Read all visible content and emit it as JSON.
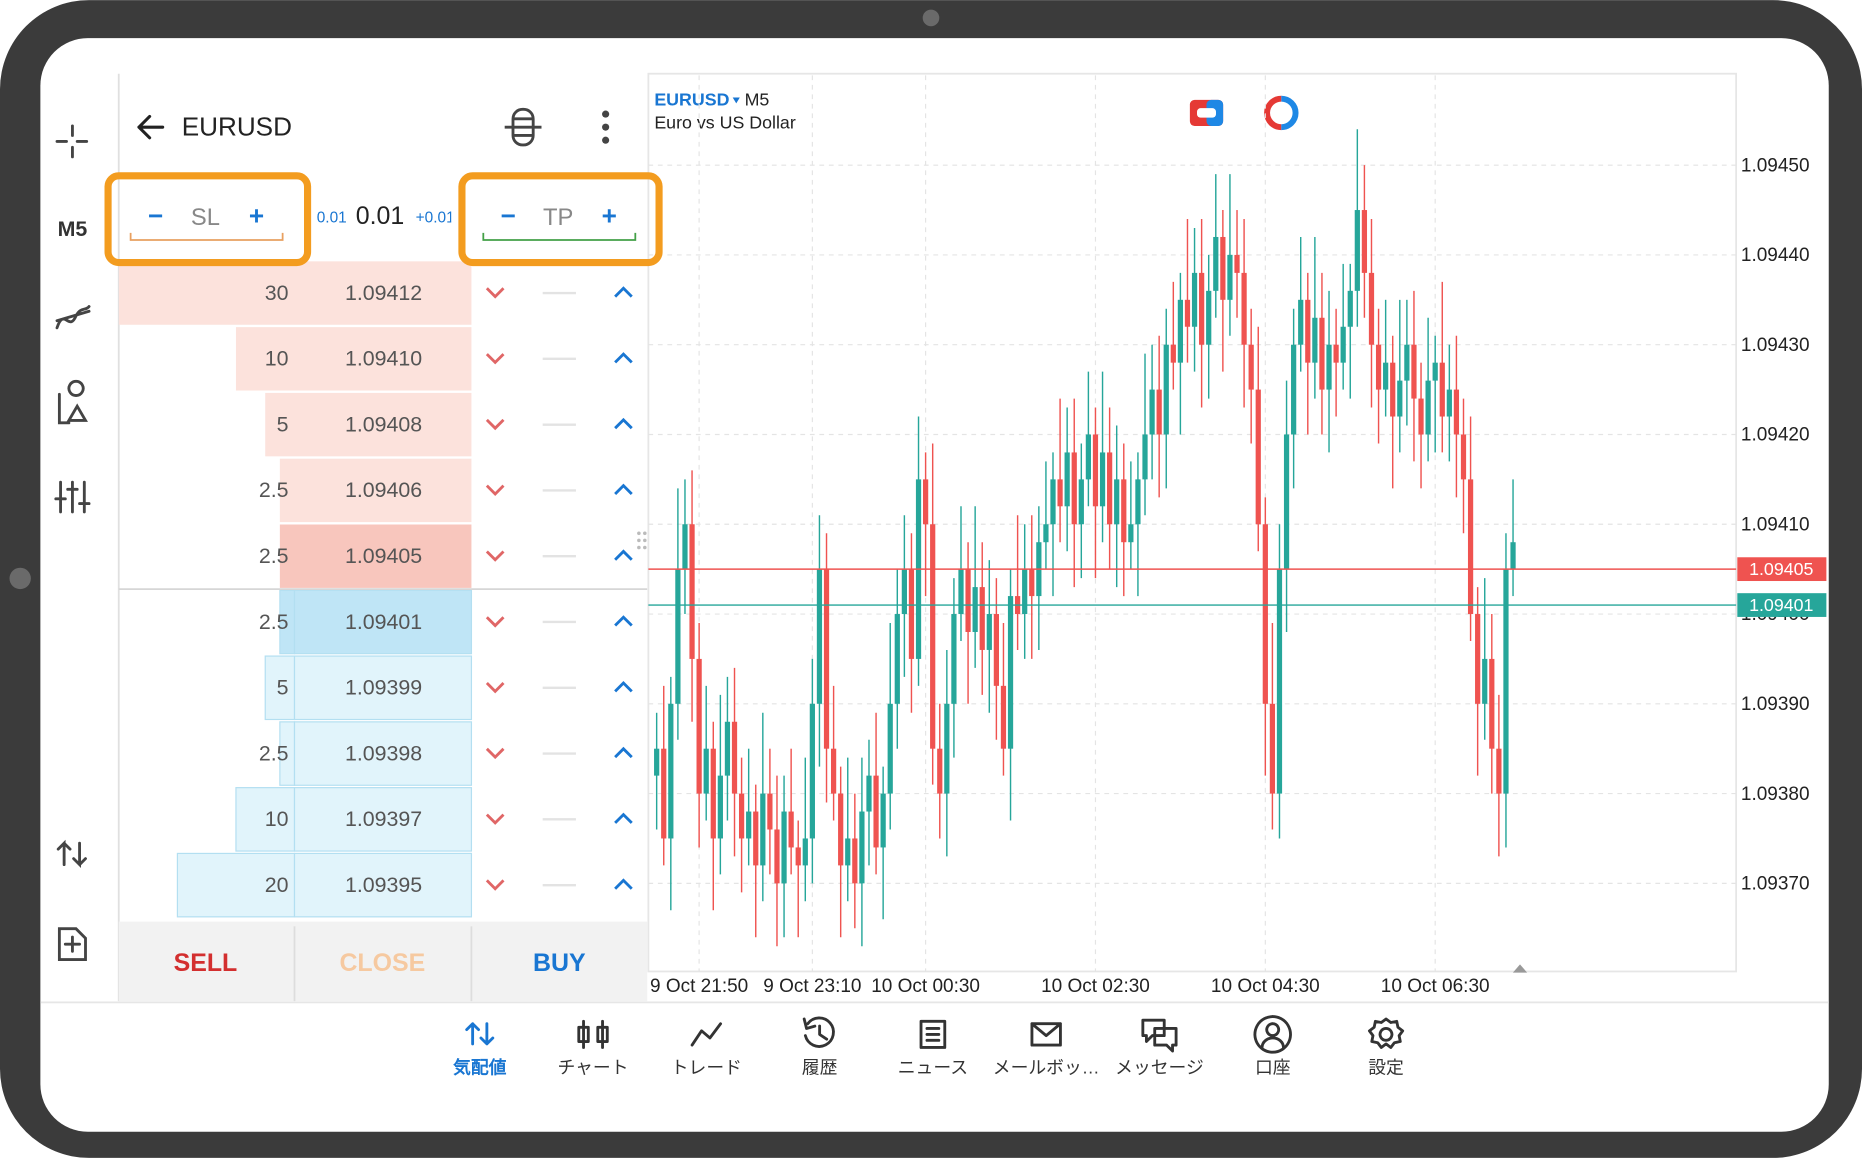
{
  "toolbar": {
    "timeframe": "M5"
  },
  "order_panel": {
    "symbol": "EURUSD",
    "sl": "SL",
    "tp": "TP",
    "volume_minus": "0.01",
    "volume": "0.01",
    "volume_plus": "+0.01",
    "ask_rows": [
      {
        "volume": 30,
        "price": "1.09412"
      },
      {
        "volume": 10,
        "price": "1.09410"
      },
      {
        "volume": 5,
        "price": "1.09408"
      },
      {
        "volume": 2.5,
        "price": "1.09406"
      },
      {
        "volume": 2.5,
        "price": "1.09405"
      }
    ],
    "bid_rows": [
      {
        "volume": 2.5,
        "price": "1.09401"
      },
      {
        "volume": 5,
        "price": "1.09399"
      },
      {
        "volume": 2.5,
        "price": "1.09398"
      },
      {
        "volume": 10,
        "price": "1.09397"
      },
      {
        "volume": 20,
        "price": "1.09395"
      }
    ],
    "buttons": {
      "sell": "SELL",
      "close": "CLOSE",
      "buy": "BUY"
    }
  },
  "chart_data": {
    "type": "candlestick",
    "symbol": "EURUSD",
    "timeframe": "M5",
    "description": "Euro vs US Dollar",
    "categories": [
      null,
      null,
      null,
      null,
      null,
      null,
      "9 Oct 21:50",
      null,
      null,
      null,
      null,
      null,
      null,
      null,
      null,
      null,
      null,
      null,
      null,
      null,
      null,
      null,
      "9 Oct 23:10",
      null,
      null,
      null,
      null,
      null,
      null,
      null,
      null,
      null,
      null,
      null,
      null,
      null,
      null,
      null,
      "10 Oct 00:30",
      null,
      null,
      null,
      null,
      null,
      null,
      null,
      null,
      null,
      null,
      null,
      null,
      null,
      null,
      null,
      null,
      null,
      null,
      null,
      null,
      null,
      null,
      null,
      "10 Oct 02:30",
      null,
      null,
      null,
      null,
      null,
      null,
      null,
      null,
      null,
      null,
      null,
      null,
      null,
      null,
      null,
      null,
      null,
      null,
      null,
      null,
      null,
      null,
      null,
      "10 Oct 04:30",
      null,
      null,
      null,
      null,
      null,
      null,
      null,
      null,
      null,
      null,
      null,
      null,
      null,
      null,
      null,
      null,
      null,
      null,
      null,
      null,
      null,
      null,
      null,
      "10 Oct 06:30",
      null,
      null,
      null,
      null,
      null,
      null,
      null,
      null,
      null,
      null,
      null
    ],
    "open": [
      1.09382,
      1.09385,
      1.09375,
      1.0939,
      1.09405,
      1.0941,
      1.09395,
      1.0938,
      1.09385,
      1.09375,
      1.09382,
      1.09388,
      1.0938,
      1.09375,
      1.09378,
      1.09372,
      1.0938,
      1.09376,
      1.0937,
      1.09378,
      1.09374,
      1.09372,
      1.09375,
      1.0939,
      1.09405,
      1.09385,
      1.0938,
      1.09372,
      1.09375,
      1.0937,
      1.09378,
      1.09382,
      1.09374,
      1.0938,
      1.0939,
      1.094,
      1.09405,
      1.09395,
      1.09415,
      1.0941,
      1.09385,
      1.0938,
      1.0939,
      1.094,
      1.09405,
      1.09398,
      1.09403,
      1.09396,
      1.094,
      1.09392,
      1.09385,
      1.09402,
      1.094,
      1.09405,
      1.09402,
      1.09408,
      1.0941,
      1.09415,
      1.09412,
      1.09418,
      1.0941,
      1.09415,
      1.0942,
      1.09412,
      1.09418,
      1.0941,
      1.09415,
      1.09408,
      1.0941,
      1.09415,
      1.0942,
      1.09425,
      1.0942,
      1.0943,
      1.09428,
      1.09435,
      1.09432,
      1.09438,
      1.0943,
      1.09436,
      1.09442,
      1.09435,
      1.0944,
      1.09438,
      1.0943,
      1.09425,
      1.0941,
      1.0939,
      1.0938,
      1.09405,
      1.0942,
      1.0943,
      1.09435,
      1.09428,
      1.09433,
      1.09425,
      1.0943,
      1.09428,
      1.09432,
      1.09436,
      1.09445,
      1.09438,
      1.0943,
      1.09425,
      1.09428,
      1.09422,
      1.09426,
      1.0943,
      1.09424,
      1.0942,
      1.09426,
      1.09428,
      1.09422,
      1.09425,
      1.0942,
      1.09415,
      1.094,
      1.0939,
      1.09395,
      1.09385,
      1.0938,
      1.09405
    ],
    "high": [
      1.09389,
      1.09392,
      1.09393,
      1.09414,
      1.09415,
      1.09416,
      1.09399,
      1.09392,
      1.09388,
      1.09391,
      1.09393,
      1.09394,
      1.09384,
      1.09385,
      1.09381,
      1.09389,
      1.09385,
      1.09382,
      1.09382,
      1.09385,
      1.09377,
      1.09384,
      1.09395,
      1.09411,
      1.09409,
      1.09392,
      1.09383,
      1.09384,
      1.0938,
      1.09384,
      1.09386,
      1.09389,
      1.09383,
      1.09399,
      1.09405,
      1.09411,
      1.09409,
      1.09422,
      1.09418,
      1.09419,
      1.0939,
      1.09396,
      1.09404,
      1.09412,
      1.09408,
      1.09412,
      1.09408,
      1.09406,
      1.09404,
      1.09399,
      1.09405,
      1.09411,
      1.0941,
      1.09411,
      1.09412,
      1.09417,
      1.09418,
      1.09424,
      1.09423,
      1.09424,
      1.09419,
      1.09427,
      1.09423,
      1.09427,
      1.09423,
      1.09421,
      1.09419,
      1.09417,
      1.09418,
      1.09429,
      1.0943,
      1.09431,
      1.09434,
      1.09437,
      1.09438,
      1.09444,
      1.09443,
      1.09444,
      1.0944,
      1.09449,
      1.09445,
      1.09449,
      1.09445,
      1.09444,
      1.09434,
      1.09432,
      1.09413,
      1.09399,
      1.0941,
      1.09426,
      1.09434,
      1.09442,
      1.09438,
      1.09442,
      1.09438,
      1.09436,
      1.09434,
      1.09439,
      1.09439,
      1.09454,
      1.0945,
      1.09444,
      1.09434,
      1.09435,
      1.09431,
      1.09435,
      1.09435,
      1.09436,
      1.09428,
      1.09433,
      1.09431,
      1.09437,
      1.0943,
      1.09431,
      1.09424,
      1.09422,
      1.09403,
      1.09404,
      1.094,
      1.09391,
      1.09409,
      1.09415
    ],
    "low": [
      1.09376,
      1.09372,
      1.09367,
      1.09386,
      1.094,
      1.09388,
      1.09374,
      1.09377,
      1.09367,
      1.09371,
      1.09377,
      1.09373,
      1.09369,
      1.09372,
      1.09364,
      1.09368,
      1.09371,
      1.09363,
      1.09364,
      1.09371,
      1.09364,
      1.09368,
      1.0937,
      1.09383,
      1.09379,
      1.09377,
      1.09364,
      1.09368,
      1.09365,
      1.09363,
      1.09372,
      1.09371,
      1.09366,
      1.09376,
      1.09385,
      1.09393,
      1.09389,
      1.09392,
      1.09402,
      1.09381,
      1.09375,
      1.09373,
      1.09384,
      1.09397,
      1.0939,
      1.09394,
      1.09391,
      1.09389,
      1.09386,
      1.09382,
      1.09377,
      1.09396,
      1.09395,
      1.09395,
      1.09396,
      1.09405,
      1.09402,
      1.09408,
      1.09407,
      1.09403,
      1.09404,
      1.09412,
      1.09404,
      1.09408,
      1.09405,
      1.09403,
      1.09402,
      1.09405,
      1.09402,
      1.09411,
      1.09415,
      1.09413,
      1.09414,
      1.09425,
      1.0942,
      1.09428,
      1.09427,
      1.09423,
      1.09424,
      1.09433,
      1.09427,
      1.09431,
      1.09433,
      1.09423,
      1.09419,
      1.09407,
      1.09382,
      1.09376,
      1.09375,
      1.09398,
      1.09414,
      1.09427,
      1.0942,
      1.09424,
      1.0942,
      1.09418,
      1.09422,
      1.09425,
      1.09424,
      1.09432,
      1.09433,
      1.09423,
      1.09419,
      1.09422,
      1.09414,
      1.09418,
      1.09421,
      1.09417,
      1.09414,
      1.09417,
      1.09418,
      1.09418,
      1.09417,
      1.09413,
      1.09409,
      1.09397,
      1.09382,
      1.09386,
      1.0938,
      1.09373,
      1.09374,
      1.09402
    ],
    "close": [
      1.09385,
      1.09375,
      1.0939,
      1.09405,
      1.0941,
      1.09395,
      1.0938,
      1.09385,
      1.09375,
      1.09382,
      1.09388,
      1.0938,
      1.09375,
      1.09378,
      1.09372,
      1.0938,
      1.09376,
      1.0937,
      1.09378,
      1.09374,
      1.09372,
      1.09375,
      1.0939,
      1.09405,
      1.09385,
      1.0938,
      1.09372,
      1.09375,
      1.0937,
      1.09378,
      1.09382,
      1.09374,
      1.0938,
      1.0939,
      1.094,
      1.09405,
      1.09395,
      1.09415,
      1.0941,
      1.09385,
      1.0938,
      1.0939,
      1.094,
      1.09405,
      1.09398,
      1.09403,
      1.09396,
      1.094,
      1.09392,
      1.09385,
      1.09402,
      1.094,
      1.09405,
      1.09402,
      1.09408,
      1.0941,
      1.09415,
      1.09412,
      1.09418,
      1.0941,
      1.09415,
      1.0942,
      1.09412,
      1.09418,
      1.0941,
      1.09415,
      1.09408,
      1.0941,
      1.09415,
      1.0942,
      1.09425,
      1.0942,
      1.0943,
      1.09428,
      1.09435,
      1.09432,
      1.09438,
      1.0943,
      1.09436,
      1.09442,
      1.09435,
      1.0944,
      1.09438,
      1.0943,
      1.09425,
      1.0941,
      1.0939,
      1.0938,
      1.09405,
      1.0942,
      1.0943,
      1.09435,
      1.09428,
      1.09433,
      1.09425,
      1.0943,
      1.09428,
      1.09432,
      1.09436,
      1.09445,
      1.09438,
      1.0943,
      1.09425,
      1.09428,
      1.09422,
      1.09426,
      1.0943,
      1.09424,
      1.0942,
      1.09426,
      1.09428,
      1.09422,
      1.09425,
      1.0942,
      1.09415,
      1.094,
      1.0939,
      1.09395,
      1.09385,
      1.0938,
      1.09405,
      1.09408
    ],
    "up_color": "#26a69a",
    "down_color": "#ef5350",
    "ylim": [
      1.0936,
      1.0946
    ],
    "yticks": [
      {
        "value": 1.0937,
        "label": "1.09370"
      },
      {
        "value": 1.0938,
        "label": "1.09380"
      },
      {
        "value": 1.0939,
        "label": "1.09390"
      },
      {
        "value": 1.094,
        "label": "1.09400"
      },
      {
        "value": 1.0941,
        "label": "1.09410"
      },
      {
        "value": 1.0942,
        "label": "1.09420"
      },
      {
        "value": 1.0943,
        "label": "1.09430"
      },
      {
        "value": 1.0944,
        "label": "1.09440"
      },
      {
        "value": 1.0945,
        "label": "1.09450"
      }
    ],
    "grid": true,
    "ask": 1.09405,
    "bid": 1.09401
  },
  "nav": {
    "active": 0,
    "items": [
      "気配値",
      "チャート",
      "トレード",
      "履歴",
      "ニュース",
      "メールボッ…",
      "メッセージ",
      "口座",
      "設定"
    ]
  }
}
